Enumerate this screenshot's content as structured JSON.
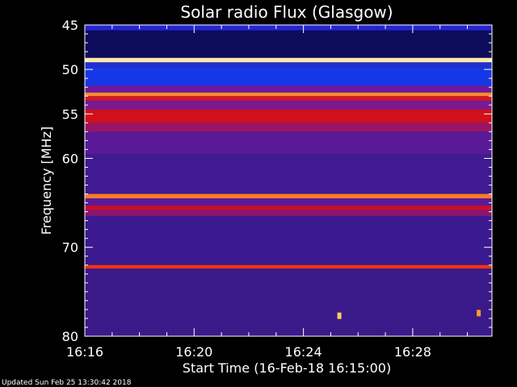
{
  "chart_data": {
    "type": "heatmap",
    "title": "Solar radio Flux (Glasgow)",
    "xlabel": "Start Time (16-Feb-18 16:15:00)",
    "ylabel": "Frequency [MHz]",
    "footer": "Updated Sun Feb 25 13:30:42 2018",
    "x_range_minutes": [
      16.0,
      30.9
    ],
    "x_ticks": [
      {
        "value": 16,
        "label": "16:16"
      },
      {
        "value": 20,
        "label": "16:20"
      },
      {
        "value": 24,
        "label": "16:24"
      },
      {
        "value": 28,
        "label": "16:28"
      }
    ],
    "ylim": [
      45,
      80
    ],
    "y_axis_inverted": true,
    "y_ticks": [
      45,
      50,
      55,
      60,
      70,
      80
    ],
    "colorscale": [
      "#1a0a6e",
      "#3a0d8c",
      "#5c1a9c",
      "#8c1480",
      "#c80f3a",
      "#ff1a00",
      "#ff8a30",
      "#fff0a0",
      "#ffffff"
    ],
    "background_band_color": "#3a1a8e",
    "bands": [
      {
        "from": 45.0,
        "to": 45.6,
        "color": "#2424d8"
      },
      {
        "from": 45.6,
        "to": 48.7,
        "color": "#0c0c5a"
      },
      {
        "from": 48.7,
        "to": 49.2,
        "color": "#ffe9a8"
      },
      {
        "from": 49.2,
        "to": 49.8,
        "color": "#1f2fd0"
      },
      {
        "from": 49.8,
        "to": 51.8,
        "color": "#1538e6"
      },
      {
        "from": 51.8,
        "to": 52.6,
        "color": "#6a1aa0"
      },
      {
        "from": 52.6,
        "to": 53.0,
        "color": "#ff8a30"
      },
      {
        "from": 53.0,
        "to": 53.5,
        "color": "#d01a20"
      },
      {
        "from": 53.5,
        "to": 54.5,
        "color": "#7a1a90"
      },
      {
        "from": 54.5,
        "to": 56.0,
        "color": "#d0101a"
      },
      {
        "from": 56.0,
        "to": 57.0,
        "color": "#9a1466"
      },
      {
        "from": 57.0,
        "to": 59.5,
        "color": "#5a1a98"
      },
      {
        "from": 59.5,
        "to": 64.0,
        "color": "#3f1a90"
      },
      {
        "from": 64.0,
        "to": 64.5,
        "color": "#ff7a28"
      },
      {
        "from": 64.5,
        "to": 65.3,
        "color": "#5a1a98"
      },
      {
        "from": 65.3,
        "to": 65.8,
        "color": "#c8102a"
      },
      {
        "from": 65.8,
        "to": 66.5,
        "color": "#8a1670"
      },
      {
        "from": 66.5,
        "to": 72.0,
        "color": "#3a1a8e"
      },
      {
        "from": 72.0,
        "to": 72.4,
        "color": "#ff3010"
      },
      {
        "from": 72.4,
        "to": 80.0,
        "color": "#3a1a88"
      }
    ],
    "bursts": [
      {
        "t": 25.3,
        "f": 77.7,
        "color": "#ffd060"
      },
      {
        "t": 30.4,
        "f": 77.4,
        "color": "#ff9a30"
      }
    ]
  }
}
